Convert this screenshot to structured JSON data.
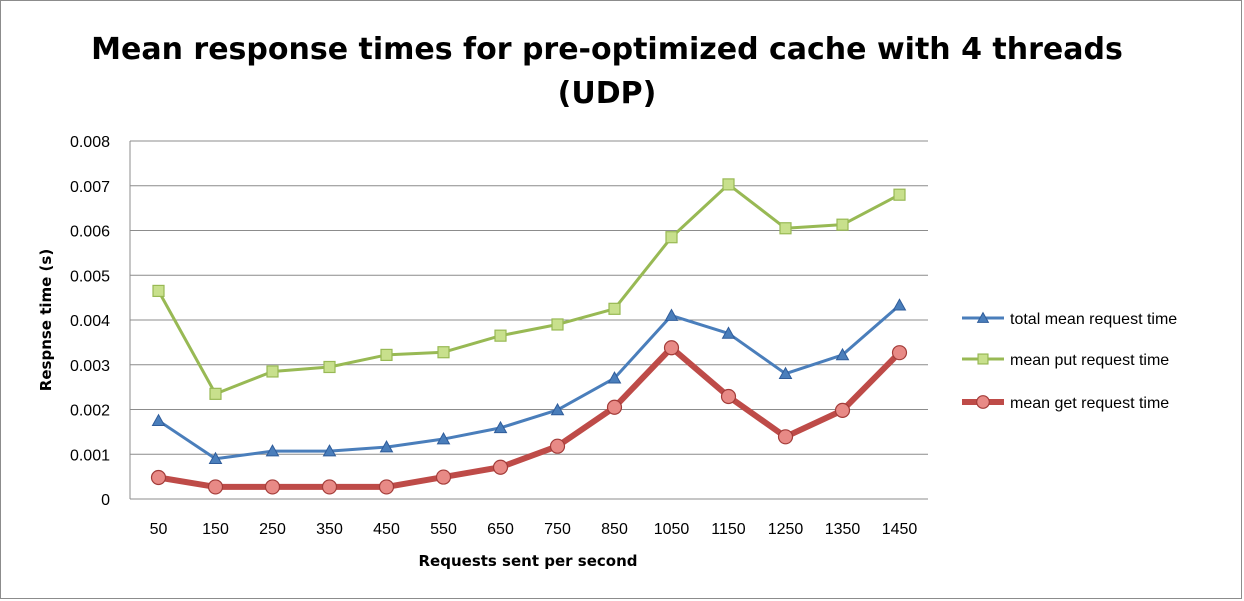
{
  "chart_data": {
    "type": "line",
    "title_lines": [
      "Mean response times for pre-optimized cache with 4 threads",
      "(UDP)"
    ],
    "xlabel": "Requests sent per second",
    "ylabel": "Respnse time (s)",
    "categories": [
      "50",
      "150",
      "250",
      "350",
      "450",
      "550",
      "650",
      "750",
      "850",
      "1050",
      "1150",
      "1250",
      "1350",
      "1450"
    ],
    "ylim": [
      0,
      0.008
    ],
    "yticks": [
      "0",
      "0.001",
      "0.002",
      "0.003",
      "0.004",
      "0.005",
      "0.006",
      "0.007",
      "0.008"
    ],
    "grid": "horizontal",
    "legend_position": "right",
    "series": [
      {
        "name": "total mean request time",
        "color": "#4a7ebb",
        "marker": "triangle",
        "values": [
          0.00175,
          0.0009,
          0.00107,
          0.00107,
          0.00116,
          0.00134,
          0.00159,
          0.00199,
          0.0027,
          0.0041,
          0.0037,
          0.0028,
          0.00322,
          0.00433
        ]
      },
      {
        "name": "mean put request time",
        "color": "#98b954",
        "marker": "square",
        "values": [
          0.00465,
          0.00235,
          0.00285,
          0.00295,
          0.00322,
          0.00328,
          0.00365,
          0.0039,
          0.00425,
          0.00585,
          0.00703,
          0.00605,
          0.00613,
          0.0068
        ]
      },
      {
        "name": "mean get request time",
        "color": "#be4b48",
        "marker": "circle",
        "values": [
          0.00048,
          0.00027,
          0.00027,
          0.00027,
          0.00027,
          0.00049,
          0.00071,
          0.00118,
          0.00205,
          0.00338,
          0.00229,
          0.00139,
          0.00198,
          0.00327
        ]
      }
    ]
  }
}
